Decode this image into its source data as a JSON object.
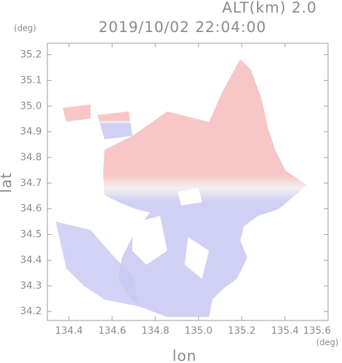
{
  "chart_data": {
    "type": "field",
    "title": "2019/10/02 22:04:00",
    "annotation": "ALT(km) 2.0",
    "xlabel": "lon",
    "ylabel": "lat",
    "xunit": "(deg)",
    "yunit": "(deg)",
    "xlim": [
      134.3,
      135.6
    ],
    "ylim": [
      34.165,
      35.245
    ],
    "xticks": [
      134.4,
      134.6,
      134.8,
      {
        "value": 135,
        "label": "135.0"
      },
      135.2,
      135.4,
      135.6
    ],
    "yticks": [
      34.2,
      34.3,
      34.4,
      34.5,
      34.6,
      34.7,
      34.8,
      34.9,
      {
        "value": 35,
        "label": "35.0"
      },
      35.1,
      35.2
    ],
    "colors": {
      "approaching": "#c8c8f2",
      "receding": "#f6bcbc"
    }
  }
}
